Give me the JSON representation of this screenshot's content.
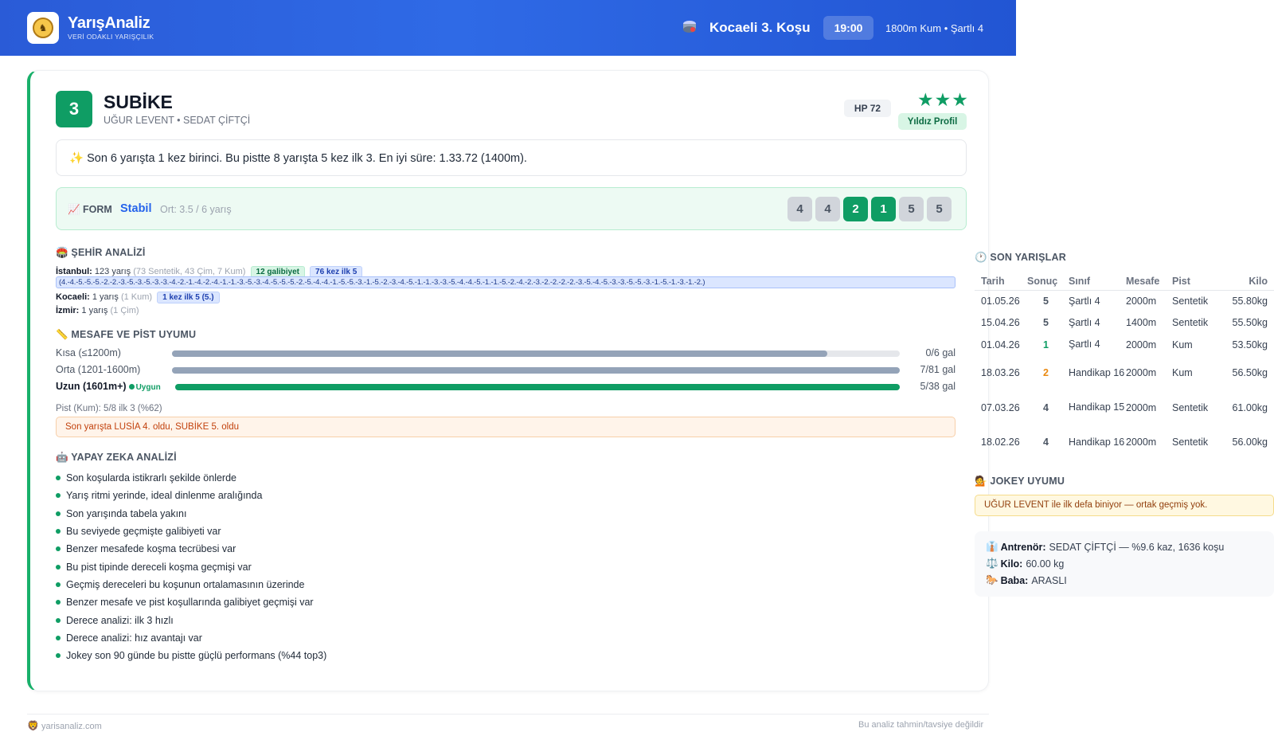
{
  "header": {
    "brand_title": "YarışAnaliz",
    "brand_subtitle": "VERİ ODAKLI YARIŞÇILIK",
    "race_title": "Kocaeli 3. Koşu",
    "race_time": "19:00",
    "race_info": "1800m Kum • Şartlı 4",
    "accent": "#2a5bd7"
  },
  "horse": {
    "number": "3",
    "name": "SUBİKE",
    "subtitle": "UĞUR LEVENT • SEDAT ÇİFTÇİ",
    "hp": "HP 72",
    "stars": "★★★",
    "star_count": 3,
    "star_label": "Yıldız Profil",
    "summary": "✨ Son 6 yarışta 1 kez birinci. Bu pistte 8 yarışta 5 kez ilk 3. En iyi süre: 1.33.72 (1400m)."
  },
  "form": {
    "label": "📈 FORM",
    "status": "Stabil",
    "average": "Ort: 3.5 / 6 yarış",
    "results": [
      "4",
      "4",
      "2",
      "1",
      "5",
      "5"
    ]
  },
  "city": {
    "title": "🏟️ ŞEHİR ANALİZİ",
    "istanbul_name": "İstanbul:",
    "istanbul_count": "123 yarış",
    "istanbul_detail": "(73 Sentetik, 43 Çim, 7 Kum)",
    "istanbul_wins": "12 galibiyet",
    "istanbul_top5": "76 kez ilk 5",
    "istanbul_sequence": "(4.-4.-5.-5.-5.-2.-2.-3.-5.-3.-5.-3.-3.-4.-2.-1.-4.-2.-4.-1.-1.-3.-5.-3.-4.-5.-5.-5.-2.-5.-4.-4.-1.-5.-5.-3.-1.-5.-2.-3.-4.-5.-1.-1.-3.-3.-5.-4.-4.-5.-1.-1.-5.-2.-4.-2.-3.-2.-2.-2.-2.-3.-5.-4.-5.-3.-3.-5.-5.-3.-1.-5.-1.-3.-1.-2.)",
    "kocaeli_name": "Kocaeli:",
    "kocaeli_count": "1 yarış",
    "kocaeli_detail": "(1 Kum)",
    "kocaeli_top5": "1 kez ilk 5 (5.)",
    "izmir_name": "İzmir:",
    "izmir_count": "1 yarış",
    "izmir_detail": "(1 Çim)"
  },
  "distance": {
    "title": "📏 MESAFE VE PİST UYUMU",
    "rows": [
      {
        "label": "Kısa (≤1200m)",
        "value": "0/6 gal",
        "fill": 0.9,
        "good": false
      },
      {
        "label": "Orta (1201-1600m)",
        "value": "7/81 gal",
        "fill": 1.0,
        "good": false
      },
      {
        "label": "Uzun (1601m+)",
        "value": "5/38 gal",
        "fill": 1.0,
        "good": true
      }
    ],
    "suitable_label": "Uygun",
    "track_note": "Pist (Kum): 5/8 ilk 3 (%62)",
    "alert": "Son yarışta LUSİA 4. oldu, SUBİKE 5. oldu"
  },
  "ai": {
    "title": "🤖 YAPAY ZEKA ANALİZİ",
    "items": [
      "Son koşularda istikrarlı şekilde önlerde",
      "Yarış ritmi yerinde, ideal dinlenme aralığında",
      "Son yarışında tabela yakını",
      "Bu seviyede geçmişte galibiyeti var",
      "Benzer mesafede koşma tecrübesi var",
      "Bu pist tipinde dereceli koşma geçmişi var",
      "Geçmiş dereceleri bu koşunun ortalamasının üzerinde",
      "Benzer mesafe ve pist koşullarında galibiyet geçmişi var",
      "Derece analizi: ilk 3 hızlı",
      "Derece analizi: hız avantajı var",
      "Jokey son 90 günde bu pistte güçlü performans (%44 top3)"
    ]
  },
  "recent": {
    "title": "🕐 SON YARIŞLAR",
    "columns": [
      "Tarih",
      "Sonuç",
      "Sınıf",
      "Mesafe",
      "Pist",
      "Kilo"
    ],
    "rows": [
      {
        "date": "01.05.26",
        "result": "5",
        "class": "Şartlı 4",
        "distance": "2000m",
        "track": "Sentetik",
        "weight": "55.80kg"
      },
      {
        "date": "15.04.26",
        "result": "5",
        "class": "Şartlı 4",
        "distance": "1400m",
        "track": "Sentetik",
        "weight": "55.50kg"
      },
      {
        "date": "01.04.26",
        "result": "1",
        "class": "Şartlı 4",
        "distance": "2000m",
        "track": "Kum",
        "weight": "53.50kg"
      },
      {
        "date": "18.03.26",
        "result": "2",
        "class": "Handikap 16",
        "distance": "2000m",
        "track": "Kum",
        "weight": "56.50kg"
      },
      {
        "date": "07.03.26",
        "result": "4",
        "class": "Handikap 15",
        "distance": "2000m",
        "track": "Sentetik",
        "weight": "61.00kg"
      },
      {
        "date": "18.02.26",
        "result": "4",
        "class": "Handikap 16",
        "distance": "2000m",
        "track": "Sentetik",
        "weight": "56.00kg"
      }
    ]
  },
  "jockey": {
    "title": "💁 JOKEY UYUMU",
    "alert": "UĞUR LEVENT ile ilk defa biniyor — ortak geçmiş yok."
  },
  "info": {
    "trainer_icon": "👔",
    "trainer_label": "Antrenör:",
    "trainer_value": "SEDAT ÇİFTÇİ — %9.6 kaz, 1636 koşu",
    "weight_icon": "⚖️",
    "weight_label": "Kilo:",
    "weight_value": "60.00 kg",
    "sire_icon": "🐎",
    "sire_label": "Baba:",
    "sire_value": "ARASLI"
  },
  "footer": {
    "site": "yarisanaliz.com",
    "disclaimer": "Bu analiz tahmin/tavsiye değildir"
  }
}
